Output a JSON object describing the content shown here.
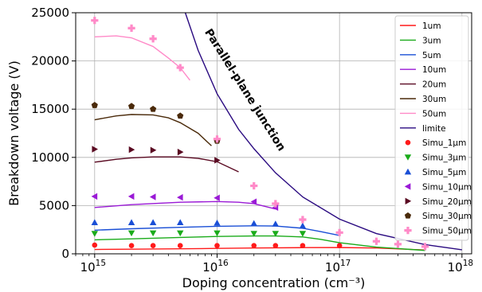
{
  "chart_data": {
    "type": "line",
    "xlabel": "Doping concentration (cm⁻³)",
    "ylabel": "Breakdown voltage (V)",
    "xscale": "log",
    "xlim": [
      700000000000000.0,
      1.2e+18
    ],
    "ylim": [
      0,
      25000
    ],
    "grid": true,
    "legend_position": "top-right",
    "x_ticks": [
      {
        "value": 1000000000000000.0,
        "base": "10",
        "exp": "15"
      },
      {
        "value": 1e+16,
        "base": "10",
        "exp": "16"
      },
      {
        "value": 1e+17,
        "base": "10",
        "exp": "17"
      },
      {
        "value": 1e+18,
        "base": "10",
        "exp": "18"
      }
    ],
    "y_ticks": [
      {
        "value": 0,
        "label": "0"
      },
      {
        "value": 5000,
        "label": "5000"
      },
      {
        "value": 10000,
        "label": "10000"
      },
      {
        "value": 15000,
        "label": "15000"
      },
      {
        "value": 20000,
        "label": "20000"
      },
      {
        "value": 25000,
        "label": "25000"
      }
    ],
    "annotation": {
      "text": "Parallel-plane junction",
      "x": 1.6e+16,
      "y": 16800,
      "rotation": 58
    },
    "series": [
      {
        "name": "1um",
        "kind": "line",
        "color": "#ff1a1a",
        "points": [
          [
            1000000000000000.0,
            450
          ],
          [
            2000000000000000.0,
            480
          ],
          [
            5000000000000000.0,
            520
          ],
          [
            1e+16,
            560
          ],
          [
            2e+16,
            600
          ],
          [
            5e+16,
            640
          ],
          [
            1e+17,
            650
          ],
          [
            2e+17,
            600
          ],
          [
            5e+17,
            400
          ]
        ]
      },
      {
        "name": "3um",
        "kind": "line",
        "color": "#1aab1a",
        "points": [
          [
            1000000000000000.0,
            1450
          ],
          [
            2000000000000000.0,
            1550
          ],
          [
            5000000000000000.0,
            1700
          ],
          [
            1e+16,
            1800
          ],
          [
            2e+16,
            1850
          ],
          [
            3e+16,
            1850
          ],
          [
            5e+16,
            1750
          ],
          [
            7e+16,
            1500
          ],
          [
            1e+17,
            1150
          ],
          [
            2e+17,
            700
          ],
          [
            5e+17,
            350
          ]
        ]
      },
      {
        "name": "5um",
        "kind": "line",
        "color": "#1a4fd6",
        "points": [
          [
            1000000000000000.0,
            2450
          ],
          [
            2000000000000000.0,
            2600
          ],
          [
            5000000000000000.0,
            2750
          ],
          [
            1e+16,
            2850
          ],
          [
            2e+16,
            2900
          ],
          [
            3e+16,
            2880
          ],
          [
            5e+16,
            2650
          ],
          [
            7e+16,
            2300
          ],
          [
            1e+17,
            1900
          ]
        ]
      },
      {
        "name": "10um",
        "kind": "line",
        "color": "#9a1ad6",
        "points": [
          [
            1000000000000000.0,
            4800
          ],
          [
            2000000000000000.0,
            5100
          ],
          [
            5000000000000000.0,
            5350
          ],
          [
            1e+16,
            5420
          ],
          [
            1.5e+16,
            5350
          ],
          [
            2e+16,
            5200
          ],
          [
            3e+16,
            4650
          ]
        ]
      },
      {
        "name": "20um",
        "kind": "line",
        "color": "#5a0a22",
        "points": [
          [
            1000000000000000.0,
            9500
          ],
          [
            1500000000000000.0,
            9800
          ],
          [
            2000000000000000.0,
            9950
          ],
          [
            3000000000000000.0,
            10050
          ],
          [
            5000000000000000.0,
            10050
          ],
          [
            7000000000000000.0,
            9900
          ],
          [
            1e+16,
            9550
          ],
          [
            1.5e+16,
            8500
          ]
        ]
      },
      {
        "name": "30um",
        "kind": "line",
        "color": "#4a2a0a",
        "points": [
          [
            1000000000000000.0,
            13900
          ],
          [
            1500000000000000.0,
            14300
          ],
          [
            2000000000000000.0,
            14450
          ],
          [
            3000000000000000.0,
            14400
          ],
          [
            4000000000000000.0,
            14100
          ],
          [
            5000000000000000.0,
            13600
          ],
          [
            7000000000000000.0,
            12500
          ],
          [
            9000000000000000.0,
            11200
          ]
        ]
      },
      {
        "name": "50um",
        "kind": "line",
        "color": "#ff8ac8",
        "points": [
          [
            1000000000000000.0,
            22500
          ],
          [
            1500000000000000.0,
            22600
          ],
          [
            2000000000000000.0,
            22400
          ],
          [
            3000000000000000.0,
            21500
          ],
          [
            4000000000000000.0,
            20300
          ],
          [
            5000000000000000.0,
            19300
          ],
          [
            6000000000000000.0,
            18000
          ]
        ]
      },
      {
        "name": "limite",
        "kind": "line",
        "color": "#2a0a80",
        "points": [
          [
            5500000000000000.0,
            25000
          ],
          [
            7000000000000000.0,
            21100
          ],
          [
            1e+16,
            16600
          ],
          [
            1.5e+16,
            12900
          ],
          [
            2e+16,
            10900
          ],
          [
            3e+16,
            8400
          ],
          [
            5e+16,
            5900
          ],
          [
            1e+17,
            3600
          ],
          [
            2e+17,
            2100
          ],
          [
            5e+17,
            950
          ],
          [
            1e+18,
            420
          ]
        ]
      },
      {
        "name": "Simu_1μm",
        "kind": "marker",
        "marker": "circle",
        "color": "#ff1a1a",
        "points": [
          [
            1000000000000000.0,
            900
          ],
          [
            2000000000000000.0,
            850
          ],
          [
            3000000000000000.0,
            850
          ],
          [
            5000000000000000.0,
            850
          ],
          [
            1e+16,
            850
          ],
          [
            2e+16,
            850
          ],
          [
            3e+16,
            850
          ],
          [
            5e+16,
            850
          ],
          [
            1e+17,
            850
          ]
        ]
      },
      {
        "name": "Simu_3μm",
        "kind": "marker",
        "marker": "tri-down",
        "color": "#1aab1a",
        "points": [
          [
            1000000000000000.0,
            2100
          ],
          [
            2000000000000000.0,
            2150
          ],
          [
            3000000000000000.0,
            2150
          ],
          [
            5000000000000000.0,
            2150
          ],
          [
            1e+16,
            2150
          ],
          [
            2e+16,
            2100
          ],
          [
            3e+16,
            2100
          ],
          [
            5e+16,
            2100
          ]
        ]
      },
      {
        "name": "Simu_5μm",
        "kind": "marker",
        "marker": "tri-up",
        "color": "#1a4fd6",
        "points": [
          [
            1000000000000000.0,
            3250
          ],
          [
            2000000000000000.0,
            3250
          ],
          [
            3000000000000000.0,
            3250
          ],
          [
            5000000000000000.0,
            3250
          ],
          [
            1e+16,
            3200
          ],
          [
            2e+16,
            3150
          ],
          [
            3e+16,
            3100
          ],
          [
            5e+16,
            2900
          ]
        ]
      },
      {
        "name": "Simu_10μm",
        "kind": "marker",
        "marker": "tri-left",
        "color": "#9a1ad6",
        "points": [
          [
            1000000000000000.0,
            5950
          ],
          [
            2000000000000000.0,
            5950
          ],
          [
            3000000000000000.0,
            5900
          ],
          [
            5000000000000000.0,
            5850
          ],
          [
            1e+16,
            5800
          ],
          [
            2e+16,
            5400
          ],
          [
            3e+16,
            4800
          ]
        ]
      },
      {
        "name": "Simu_20μm",
        "kind": "marker",
        "marker": "tri-right",
        "color": "#5a0a22",
        "points": [
          [
            1000000000000000.0,
            10850
          ],
          [
            2000000000000000.0,
            10800
          ],
          [
            3000000000000000.0,
            10750
          ],
          [
            5000000000000000.0,
            10550
          ],
          [
            1e+16,
            9700
          ]
        ]
      },
      {
        "name": "Simu_30μm",
        "kind": "marker",
        "marker": "pentagon",
        "color": "#4a2a0a",
        "points": [
          [
            1000000000000000.0,
            15400
          ],
          [
            2000000000000000.0,
            15300
          ],
          [
            3000000000000000.0,
            15000
          ],
          [
            5000000000000000.0,
            14300
          ],
          [
            1e+16,
            11700
          ]
        ]
      },
      {
        "name": "Simu_50μm",
        "kind": "marker",
        "marker": "plus",
        "color": "#ff8ac8",
        "points": [
          [
            1000000000000000.0,
            24200
          ],
          [
            2000000000000000.0,
            23400
          ],
          [
            3000000000000000.0,
            22300
          ],
          [
            5000000000000000.0,
            19300
          ],
          [
            1e+16,
            11900
          ],
          [
            2e+16,
            7050
          ],
          [
            3e+16,
            5200
          ],
          [
            5e+16,
            3550
          ],
          [
            1e+17,
            2200
          ],
          [
            2e+17,
            1300
          ],
          [
            3e+17,
            1000
          ],
          [
            5e+17,
            750
          ]
        ]
      }
    ]
  }
}
